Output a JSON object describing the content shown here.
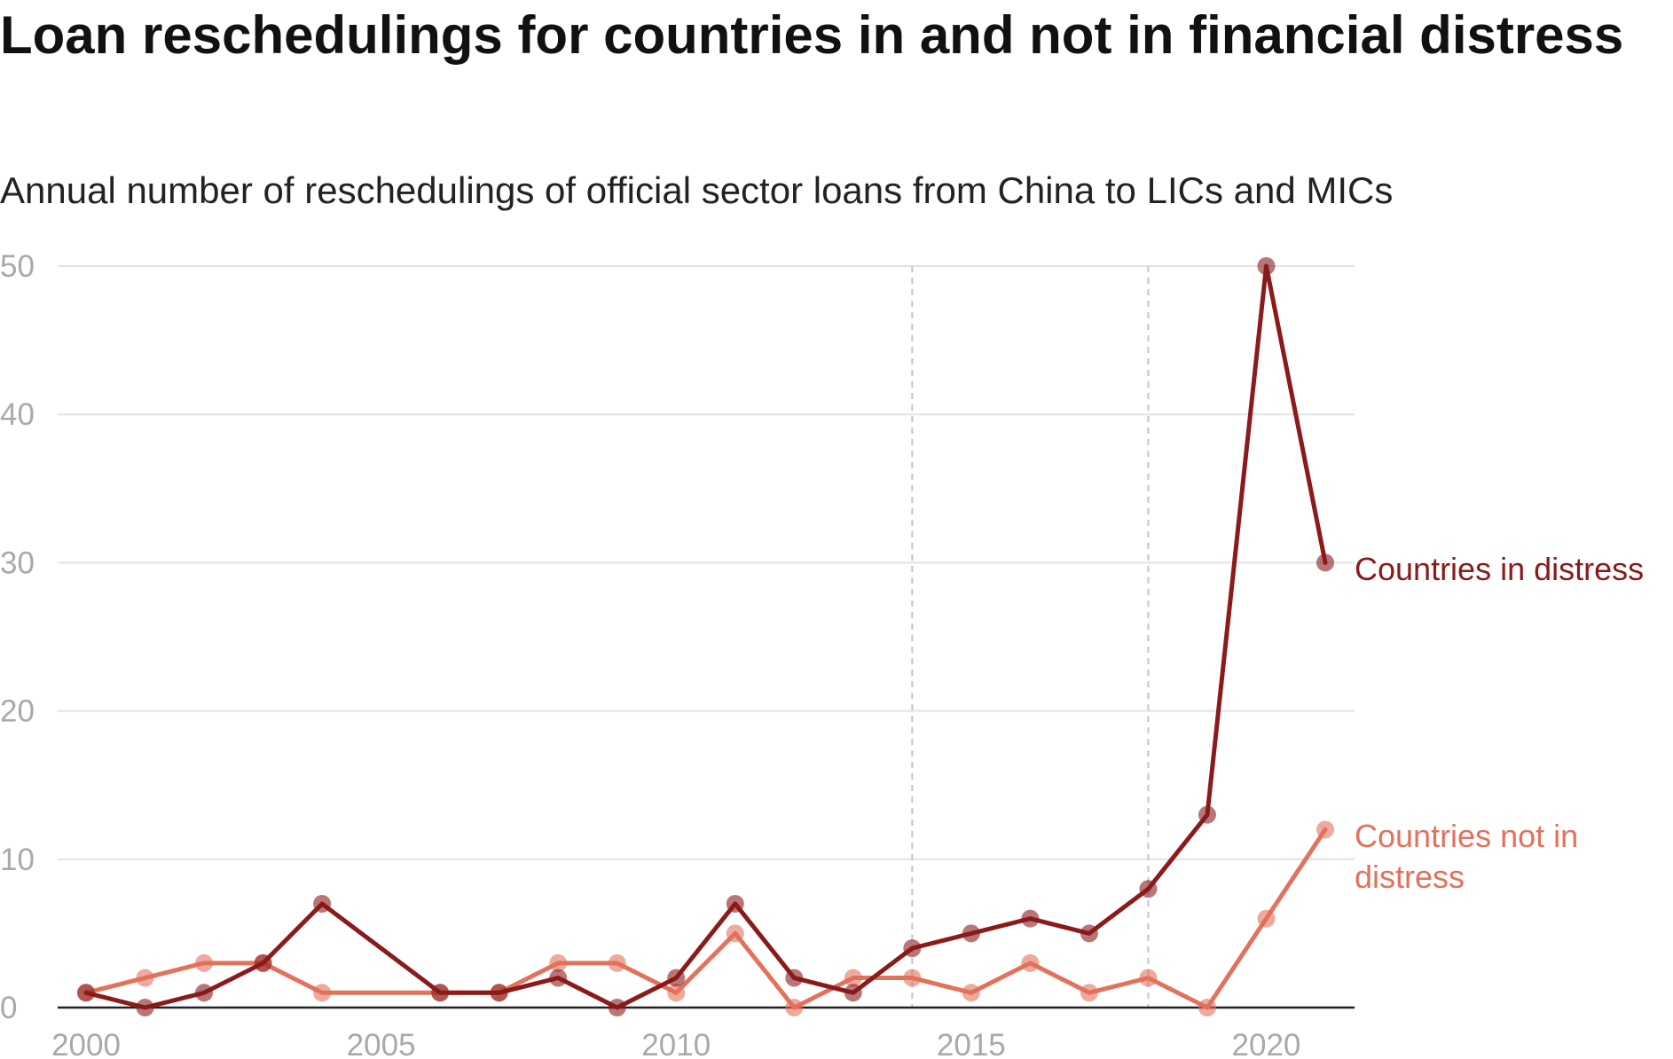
{
  "chart_data": {
    "type": "line",
    "title": "Loan reschedulings for countries in and not in financial distress",
    "subtitle": "Annual number of reschedulings of official sector loans from China to LICs and MICs",
    "x": [
      2000,
      2001,
      2002,
      2003,
      2004,
      2005,
      2006,
      2007,
      2008,
      2009,
      2010,
      2011,
      2012,
      2013,
      2014,
      2015,
      2016,
      2017,
      2018,
      2019,
      2020,
      2021
    ],
    "series": [
      {
        "name": "Countries in distress",
        "color": "#8b1a1a",
        "values": [
          1,
          0,
          1,
          3,
          7,
          null,
          1,
          1,
          2,
          0,
          2,
          7,
          2,
          1,
          4,
          5,
          6,
          5,
          8,
          13,
          50,
          30
        ]
      },
      {
        "name": "Countries not in distress",
        "color": "#e2725b",
        "values": [
          1,
          2,
          3,
          3,
          1,
          null,
          1,
          1,
          3,
          3,
          1,
          5,
          0,
          2,
          2,
          1,
          3,
          1,
          2,
          0,
          6,
          12
        ]
      }
    ],
    "x_ticks": [
      "2000",
      "2005",
      "2010",
      "2015",
      "2020"
    ],
    "y_ticks": [
      "0",
      "10",
      "20",
      "30",
      "40",
      "50"
    ],
    "xlim": [
      2000,
      2021
    ],
    "ylim": [
      0,
      50
    ],
    "grid": true,
    "reference_lines_x": [
      2014,
      2018
    ],
    "legend": "direct labels at line ends (right)"
  }
}
